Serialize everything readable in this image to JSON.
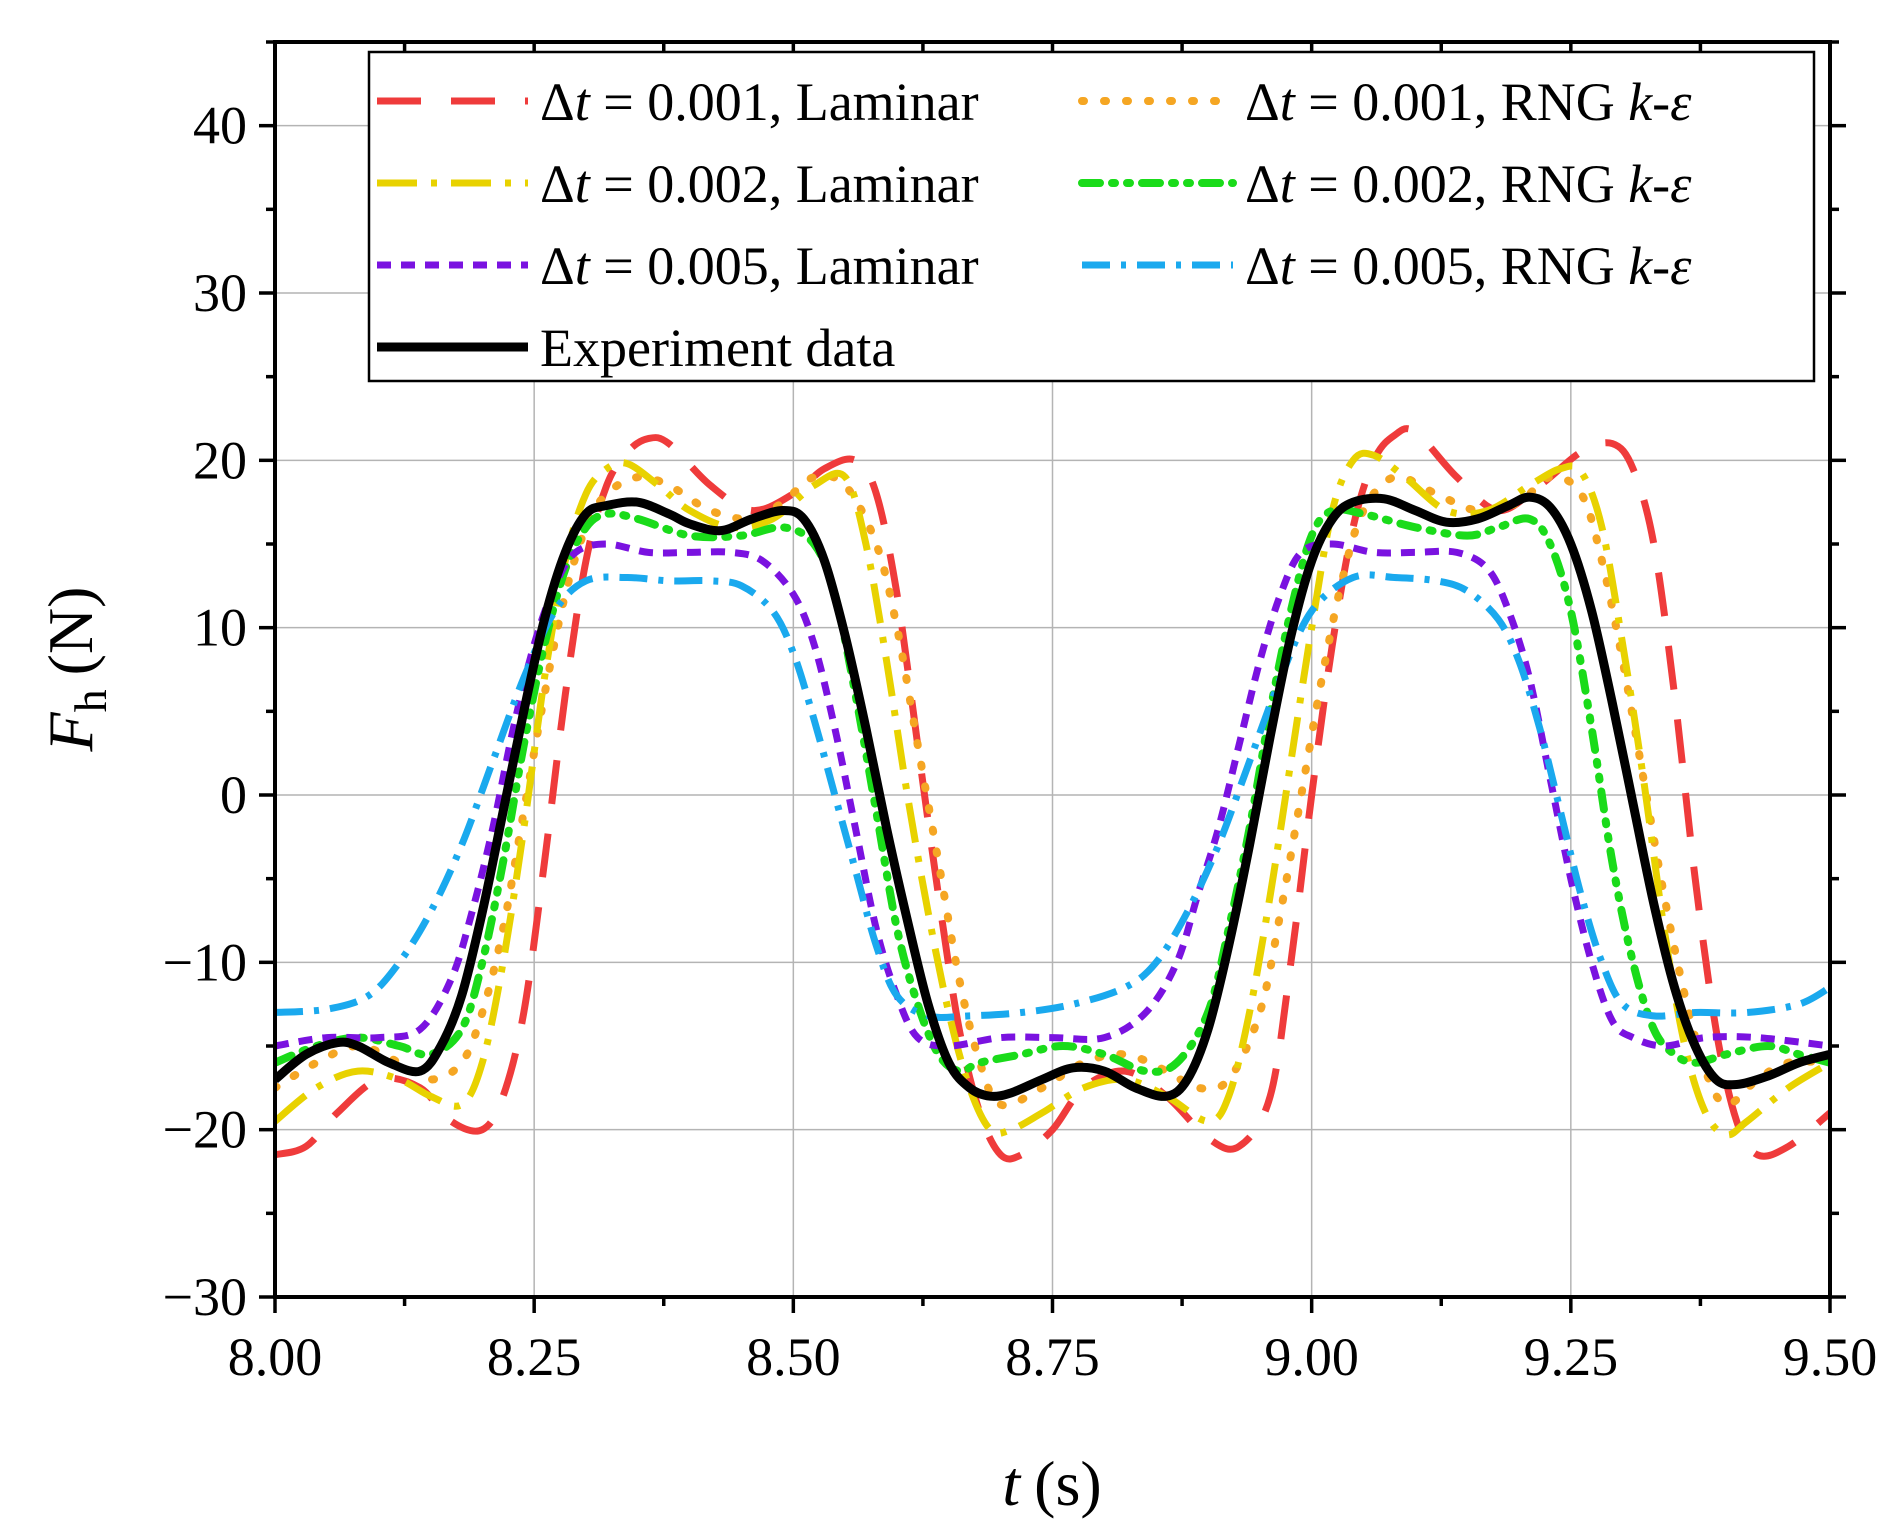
{
  "chart_data": {
    "type": "line",
    "xlabel": "t",
    "xunit": "(s)",
    "ylabel_main": "F",
    "ylabel_sub": "h",
    "yunit": "(N)",
    "xlim": [
      8.0,
      9.5
    ],
    "ylim": [
      -30,
      45
    ],
    "xticks": [
      8.0,
      8.25,
      8.5,
      8.75,
      9.0,
      9.25,
      9.5
    ],
    "xtick_labels": [
      "8.00",
      "8.25",
      "8.50",
      "8.75",
      "9.00",
      "9.25",
      "9.50"
    ],
    "yticks": [
      -30,
      -20,
      -10,
      0,
      10,
      20,
      30,
      40
    ],
    "ytick_labels": [
      "−30",
      "−20",
      "−10",
      "0",
      "10",
      "20",
      "30",
      "40"
    ],
    "grid": true,
    "legend_position": "top-right",
    "series": [
      {
        "name": "Δt = 0.001, Laminar",
        "label": {
          "pre": "Δ",
          "var": "t",
          "mid": " = 0.001, Laminar",
          "italic_tail": ""
        },
        "color": "#EF3B3B",
        "dash": "44,30",
        "width": 7,
        "x": [
          8.0,
          8.03,
          8.06,
          8.1,
          8.14,
          8.17,
          8.2,
          8.22,
          8.24,
          8.26,
          8.28,
          8.3,
          8.32,
          8.34,
          8.36,
          8.38,
          8.42,
          8.46,
          8.5,
          8.53,
          8.56,
          8.58,
          8.6,
          8.62,
          8.64,
          8.66,
          8.68,
          8.7,
          8.72,
          8.75,
          8.78,
          8.82,
          8.86,
          8.9,
          8.93,
          8.96,
          8.98,
          9.0,
          9.02,
          9.04,
          9.06,
          9.08,
          9.1,
          9.14,
          9.18,
          9.22,
          9.26,
          9.29,
          9.31,
          9.33,
          9.35,
          9.37,
          9.39,
          9.41,
          9.43,
          9.46,
          9.5
        ],
        "y": [
          -21.5,
          -21.0,
          -19.0,
          -17.0,
          -17.5,
          -19.5,
          -20.0,
          -18.0,
          -13.0,
          -4.0,
          6.0,
          14.0,
          18.5,
          20.5,
          21.3,
          21.0,
          18.5,
          17.0,
          18.0,
          19.5,
          20.0,
          18.0,
          12.0,
          3.0,
          -6.0,
          -14.0,
          -19.0,
          -21.5,
          -21.5,
          -20.0,
          -17.5,
          -16.5,
          -18.0,
          -20.5,
          -21.0,
          -18.0,
          -10.0,
          0.0,
          9.0,
          16.0,
          20.0,
          21.5,
          21.7,
          19.0,
          17.0,
          18.5,
          20.5,
          21.0,
          19.5,
          15.0,
          6.0,
          -5.0,
          -14.0,
          -19.5,
          -21.5,
          -21.0,
          -19.0
        ]
      },
      {
        "name": "Δt = 0.001, RNG k-ε",
        "label": {
          "pre": "Δ",
          "var": "t",
          "mid": " = 0.001, RNG ",
          "italic_tail": "k-ε"
        },
        "color": "#F5A623",
        "dash": "2,20",
        "width": 8,
        "x": [
          8.0,
          8.04,
          8.08,
          8.12,
          8.15,
          8.18,
          8.2,
          8.22,
          8.24,
          8.26,
          8.28,
          8.3,
          8.32,
          8.35,
          8.38,
          8.42,
          8.46,
          8.49,
          8.52,
          8.55,
          8.58,
          8.6,
          8.62,
          8.64,
          8.66,
          8.68,
          8.7,
          8.74,
          8.78,
          8.82,
          8.86,
          8.89,
          8.92,
          8.95,
          8.97,
          8.99,
          9.01,
          9.03,
          9.05,
          9.08,
          9.12,
          9.16,
          9.2,
          9.23,
          9.26,
          9.28,
          9.3,
          9.32,
          9.34,
          9.36,
          9.38,
          9.4,
          9.43,
          9.46,
          9.5
        ],
        "y": [
          -17.5,
          -16.0,
          -15.0,
          -16.0,
          -17.0,
          -16.0,
          -13.0,
          -8.0,
          -1.0,
          6.0,
          12.0,
          16.0,
          18.0,
          19.0,
          18.5,
          17.0,
          16.5,
          17.5,
          19.0,
          18.5,
          15.0,
          10.0,
          3.0,
          -4.0,
          -11.0,
          -16.0,
          -18.5,
          -17.5,
          -16.0,
          -15.5,
          -16.5,
          -17.5,
          -17.0,
          -13.0,
          -7.0,
          0.0,
          7.0,
          13.0,
          17.0,
          19.0,
          18.0,
          17.0,
          17.5,
          19.0,
          18.0,
          14.0,
          8.0,
          1.0,
          -6.0,
          -12.0,
          -16.5,
          -18.5,
          -17.0,
          -16.0,
          -16.0
        ]
      },
      {
        "name": "Δt = 0.002, Laminar",
        "label": {
          "pre": "Δ",
          "var": "t",
          "mid": " = 0.002, Laminar",
          "italic_tail": ""
        },
        "color": "#E8D200",
        "dash": "40,14,6,14",
        "width": 7,
        "x": [
          8.0,
          8.04,
          8.08,
          8.12,
          8.15,
          8.18,
          8.2,
          8.22,
          8.24,
          8.26,
          8.28,
          8.3,
          8.32,
          8.34,
          8.37,
          8.4,
          8.44,
          8.48,
          8.52,
          8.55,
          8.57,
          8.59,
          8.61,
          8.63,
          8.65,
          8.67,
          8.69,
          8.71,
          8.74,
          8.78,
          8.82,
          8.86,
          8.9,
          8.92,
          8.94,
          8.96,
          8.98,
          9.0,
          9.02,
          9.04,
          9.06,
          9.09,
          9.13,
          9.17,
          9.21,
          9.24,
          9.26,
          9.28,
          9.3,
          9.32,
          9.34,
          9.36,
          9.38,
          9.4,
          9.42,
          9.46,
          9.5
        ],
        "y": [
          -19.5,
          -17.5,
          -16.5,
          -17.0,
          -18.0,
          -18.5,
          -16.0,
          -10.0,
          -2.0,
          7.0,
          14.0,
          18.0,
          19.5,
          19.8,
          18.5,
          17.0,
          16.0,
          16.5,
          18.5,
          19.0,
          15.0,
          8.0,
          0.0,
          -7.0,
          -13.0,
          -17.5,
          -20.0,
          -20.0,
          -19.0,
          -17.5,
          -17.0,
          -18.0,
          -19.5,
          -18.0,
          -13.0,
          -6.0,
          2.0,
          10.0,
          17.0,
          20.0,
          20.3,
          19.0,
          17.0,
          17.0,
          18.5,
          19.5,
          19.3,
          16.0,
          9.0,
          1.0,
          -8.0,
          -15.0,
          -19.0,
          -20.3,
          -19.5,
          -17.5,
          -16.0
        ]
      },
      {
        "name": "Δt = 0.002, RNG k-ε",
        "label": {
          "pre": "Δ",
          "var": "t",
          "mid": " = 0.002, RNG ",
          "italic_tail": "k-ε"
        },
        "color": "#1ADB1A",
        "dash": "18,12,3,12,3,12",
        "width": 8,
        "x": [
          8.0,
          8.04,
          8.08,
          8.12,
          8.15,
          8.18,
          8.2,
          8.22,
          8.24,
          8.26,
          8.28,
          8.3,
          8.32,
          8.35,
          8.4,
          8.45,
          8.49,
          8.52,
          8.54,
          8.56,
          8.58,
          8.6,
          8.62,
          8.64,
          8.66,
          8.68,
          8.72,
          8.76,
          8.8,
          8.84,
          8.87,
          8.9,
          8.92,
          8.94,
          8.96,
          8.98,
          9.0,
          9.02,
          9.05,
          9.1,
          9.15,
          9.18,
          9.21,
          9.23,
          9.25,
          9.27,
          9.29,
          9.31,
          9.33,
          9.35,
          9.37,
          9.4,
          9.44,
          9.47,
          9.5
        ],
        "y": [
          -16.0,
          -15.0,
          -14.5,
          -15.0,
          -15.5,
          -14.0,
          -10.0,
          -4.0,
          3.0,
          9.0,
          13.5,
          16.0,
          16.8,
          16.5,
          15.5,
          15.5,
          16.0,
          15.0,
          12.0,
          6.0,
          -1.0,
          -8.0,
          -12.5,
          -15.5,
          -16.5,
          -16.0,
          -15.5,
          -15.0,
          -15.5,
          -16.5,
          -16.0,
          -13.0,
          -8.0,
          -2.0,
          5.0,
          11.0,
          15.5,
          17.0,
          16.8,
          16.0,
          15.5,
          16.0,
          16.5,
          15.0,
          11.0,
          4.0,
          -4.0,
          -10.0,
          -14.0,
          -15.5,
          -16.0,
          -15.5,
          -15.0,
          -15.5,
          -16.0
        ]
      },
      {
        "name": "Δt = 0.005, Laminar",
        "label": {
          "pre": "Δ",
          "var": "t",
          "mid": " = 0.005, Laminar",
          "italic_tail": ""
        },
        "color": "#7A12E0",
        "dash": "14,10",
        "width": 7,
        "x": [
          8.0,
          8.05,
          8.1,
          8.14,
          8.17,
          8.19,
          8.21,
          8.23,
          8.25,
          8.27,
          8.29,
          8.32,
          8.36,
          8.4,
          8.44,
          8.47,
          8.5,
          8.52,
          8.54,
          8.56,
          8.58,
          8.6,
          8.62,
          8.65,
          8.7,
          8.75,
          8.8,
          8.84,
          8.87,
          8.89,
          8.91,
          8.93,
          8.95,
          8.97,
          8.99,
          9.02,
          9.06,
          9.1,
          9.14,
          9.17,
          9.19,
          9.21,
          9.23,
          9.25,
          9.27,
          9.29,
          9.31,
          9.34,
          9.38,
          9.43,
          9.5
        ],
        "y": [
          -15.0,
          -14.5,
          -14.5,
          -14.0,
          -11.0,
          -7.0,
          -2.0,
          4.0,
          9.0,
          12.5,
          14.5,
          15.0,
          14.5,
          14.5,
          14.5,
          14.0,
          12.0,
          9.0,
          4.0,
          -2.0,
          -8.0,
          -12.0,
          -14.5,
          -15.0,
          -14.5,
          -14.5,
          -14.5,
          -13.0,
          -10.0,
          -6.0,
          -2.0,
          3.0,
          8.0,
          12.0,
          14.5,
          15.0,
          14.5,
          14.5,
          14.5,
          13.5,
          11.0,
          7.0,
          1.0,
          -5.0,
          -10.0,
          -13.5,
          -14.5,
          -15.0,
          -14.5,
          -14.5,
          -15.0
        ]
      },
      {
        "name": "Δt = 0.005, RNG k-ε",
        "label": {
          "pre": "Δ",
          "var": "t",
          "mid": " = 0.005, RNG ",
          "italic_tail": "k-ε"
        },
        "color": "#1AA9EE",
        "dash": "28,11,5,11",
        "width": 7,
        "x": [
          8.0,
          8.05,
          8.09,
          8.12,
          8.15,
          8.18,
          8.21,
          8.24,
          8.27,
          8.3,
          8.34,
          8.38,
          8.42,
          8.45,
          8.48,
          8.5,
          8.52,
          8.54,
          8.56,
          8.58,
          8.6,
          8.63,
          8.67,
          8.72,
          8.77,
          8.82,
          8.85,
          8.88,
          8.91,
          8.94,
          8.97,
          9.0,
          9.04,
          9.08,
          9.12,
          9.15,
          9.18,
          9.2,
          9.22,
          9.24,
          9.26,
          9.28,
          9.3,
          9.33,
          9.37,
          9.42,
          9.47,
          9.5
        ],
        "y": [
          -13.0,
          -12.8,
          -12.0,
          -10.0,
          -7.0,
          -3.0,
          2.0,
          7.0,
          11.0,
          12.8,
          13.0,
          12.8,
          12.8,
          12.5,
          11.0,
          8.5,
          4.5,
          0.0,
          -4.5,
          -9.0,
          -12.0,
          -13.2,
          -13.2,
          -13.0,
          -12.5,
          -11.5,
          -10.0,
          -7.0,
          -3.0,
          2.0,
          7.0,
          11.0,
          13.0,
          13.0,
          12.8,
          12.2,
          10.5,
          8.0,
          4.0,
          -1.0,
          -6.0,
          -10.0,
          -12.5,
          -13.2,
          -13.0,
          -13.0,
          -12.5,
          -11.5
        ]
      },
      {
        "name": "Experiment data",
        "label": {
          "pre": "",
          "var": "",
          "mid": "Experiment data",
          "italic_tail": ""
        },
        "color": "#000000",
        "dash": "",
        "width": 9,
        "x": [
          8.0,
          8.03,
          8.06,
          8.08,
          8.11,
          8.14,
          8.16,
          8.18,
          8.2,
          8.22,
          8.24,
          8.26,
          8.28,
          8.3,
          8.32,
          8.35,
          8.38,
          8.4,
          8.43,
          8.46,
          8.49,
          8.51,
          8.53,
          8.55,
          8.57,
          8.59,
          8.61,
          8.63,
          8.65,
          8.67,
          8.69,
          8.71,
          8.74,
          8.77,
          8.8,
          8.83,
          8.86,
          8.88,
          8.9,
          8.92,
          8.94,
          8.96,
          8.98,
          9.0,
          9.02,
          9.04,
          9.07,
          9.1,
          9.13,
          9.16,
          9.19,
          9.21,
          9.23,
          9.25,
          9.27,
          9.29,
          9.31,
          9.33,
          9.35,
          9.37,
          9.39,
          9.41,
          9.44,
          9.47,
          9.5
        ],
        "y": [
          -17.0,
          -15.5,
          -14.8,
          -15.0,
          -16.0,
          -16.5,
          -15.0,
          -12.0,
          -7.0,
          -1.0,
          5.0,
          10.5,
          14.5,
          16.8,
          17.3,
          17.5,
          16.8,
          16.2,
          15.8,
          16.5,
          17.0,
          16.5,
          14.0,
          9.5,
          4.0,
          -2.0,
          -7.5,
          -12.5,
          -16.0,
          -17.5,
          -18.0,
          -17.8,
          -17.0,
          -16.3,
          -16.5,
          -17.5,
          -18.0,
          -17.0,
          -14.0,
          -9.0,
          -3.0,
          3.5,
          9.5,
          14.0,
          16.5,
          17.5,
          17.7,
          17.0,
          16.3,
          16.5,
          17.3,
          17.8,
          17.2,
          15.0,
          11.0,
          5.5,
          -0.5,
          -6.5,
          -11.5,
          -15.0,
          -17.0,
          -17.3,
          -16.8,
          -16.0,
          -15.5
        ]
      }
    ]
  }
}
